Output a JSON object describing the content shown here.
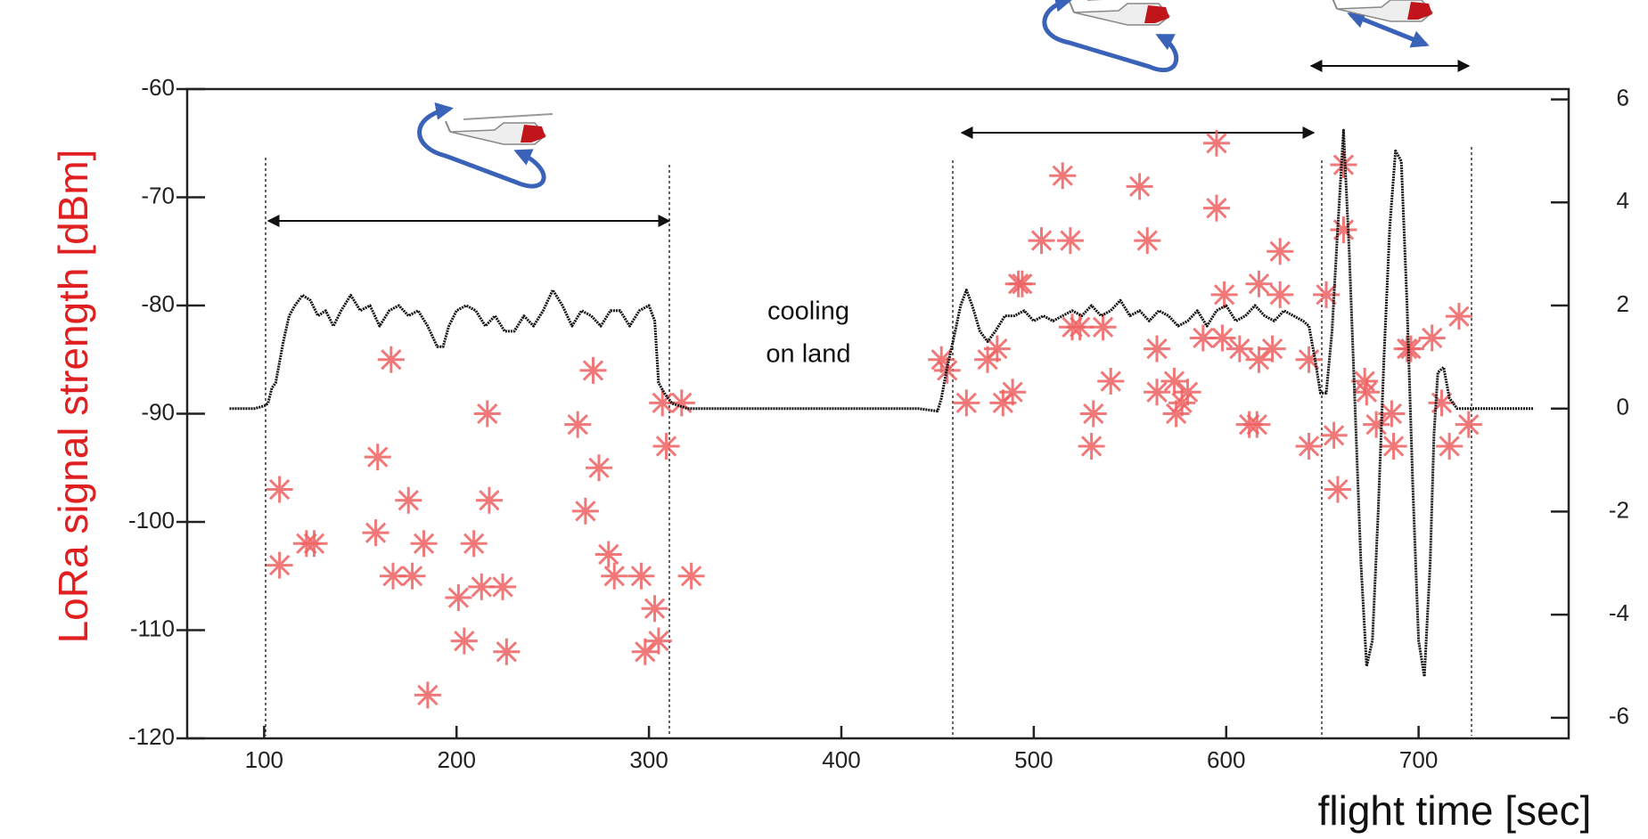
{
  "chart_data": {
    "type": "scatter",
    "xlabel": "flight time [sec]",
    "ylabel": "LoRa signal  strength [dBm]",
    "annotation": [
      "cooling",
      "on land"
    ],
    "xlim": [
      60,
      778
    ],
    "xticks": [
      100,
      200,
      300,
      400,
      500,
      600,
      700
    ],
    "ylim": [
      -120,
      -60
    ],
    "yticks": [
      -120,
      -110,
      -100,
      -90,
      -80,
      -70,
      -60
    ],
    "y2lim": [
      -6.4,
      6.2
    ],
    "y2ticks": [
      -6,
      -4,
      -2,
      0,
      2,
      4,
      6
    ],
    "grid": false,
    "series": [
      {
        "type": "scatter",
        "color": "#ee6060",
        "x": [
          108,
          108,
          122,
          126,
          159,
          166,
          158,
          167,
          175,
          177,
          183,
          185,
          201,
          204,
          209,
          213,
          216,
          217,
          224,
          226,
          263,
          267,
          271,
          274,
          279,
          282,
          296,
          298,
          303,
          305,
          307,
          309,
          317,
          322,
          452,
          455,
          465,
          476,
          481,
          484,
          489,
          492,
          494,
          504,
          515,
          519,
          520,
          524,
          531,
          530,
          536,
          540,
          555,
          559,
          564,
          564,
          573,
          574,
          577,
          580,
          595,
          595,
          588,
          599,
          598,
          607,
          612,
          616,
          617,
          624,
          628,
          628,
          617,
          643,
          643,
          652,
          656,
          661,
          661,
          658,
          672,
          673,
          678,
          686,
          687,
          694,
          696,
          707,
          712,
          716,
          721,
          726
        ],
        "values": [
          -97,
          -104,
          -102,
          -102,
          -94,
          -85,
          -101,
          -105,
          -98,
          -105,
          -102,
          -116,
          -107,
          -111,
          -102,
          -106,
          -90,
          -98,
          -106,
          -112,
          -91,
          -99,
          -86,
          -95,
          -103,
          -105,
          -105,
          -112,
          -108,
          -111,
          -89,
          -93,
          -89,
          -105,
          -85,
          -86,
          -89,
          -85,
          -84,
          -89,
          -88,
          -78,
          -78,
          -74,
          -68,
          -74,
          -82,
          -82,
          -90,
          -93,
          -82,
          -87,
          -69,
          -74,
          -84,
          -88,
          -87,
          -90,
          -89,
          -88,
          -65,
          -71,
          -83,
          -79,
          -83,
          -84,
          -91,
          -91,
          -78,
          -84,
          -79,
          -75,
          -85,
          -85,
          -93,
          -79,
          -92,
          -67,
          -73,
          -97,
          -87,
          -88,
          -91,
          -90,
          -93,
          -84,
          -84,
          -83,
          -89,
          -93,
          -81,
          -91
        ]
      },
      {
        "type": "line",
        "axis": "y2",
        "color": "#111111",
        "x": [
          82,
          95,
          100,
          102,
          104,
          106,
          108,
          110,
          113,
          116,
          120,
          124,
          128,
          132,
          136,
          140,
          145,
          150,
          155,
          160,
          165,
          170,
          175,
          180,
          185,
          190,
          193,
          196,
          200,
          205,
          210,
          215,
          220,
          225,
          230,
          235,
          240,
          245,
          250,
          255,
          260,
          265,
          270,
          275,
          280,
          285,
          290,
          295,
          300,
          303,
          305,
          308,
          312,
          320,
          340,
          360,
          380,
          400,
          420,
          440,
          450,
          452,
          455,
          458,
          462,
          465,
          468,
          472,
          476,
          480,
          485,
          490,
          495,
          500,
          505,
          510,
          515,
          520,
          525,
          530,
          535,
          540,
          545,
          550,
          555,
          560,
          565,
          570,
          575,
          580,
          585,
          590,
          595,
          600,
          605,
          610,
          615,
          620,
          625,
          630,
          635,
          640,
          643,
          646,
          649,
          652,
          655,
          658,
          661,
          664,
          667,
          670,
          673,
          676,
          679,
          682,
          685,
          688,
          691,
          694,
          697,
          700,
          703,
          706,
          708,
          710,
          713,
          716,
          720,
          730,
          760
        ],
        "values": [
          0,
          0,
          0.05,
          0.1,
          0.4,
          0.5,
          0.9,
          1.3,
          1.8,
          2.0,
          2.2,
          2.1,
          1.8,
          1.9,
          1.6,
          1.9,
          2.2,
          1.9,
          2.0,
          1.6,
          1.9,
          2.0,
          1.8,
          1.9,
          1.6,
          1.2,
          1.2,
          1.6,
          1.9,
          2.0,
          1.9,
          1.6,
          1.8,
          1.5,
          1.5,
          1.8,
          1.6,
          1.9,
          2.3,
          2.0,
          1.6,
          1.9,
          1.8,
          1.6,
          1.9,
          1.9,
          1.6,
          1.9,
          2.0,
          1.7,
          0.5,
          0.3,
          0.1,
          0,
          0,
          0,
          0,
          0,
          0,
          0,
          -0.05,
          0.2,
          0.8,
          1.3,
          2.0,
          2.3,
          2.0,
          1.5,
          1.3,
          1.5,
          1.8,
          1.8,
          1.9,
          1.7,
          1.8,
          1.7,
          1.8,
          1.9,
          1.8,
          2.0,
          1.8,
          1.9,
          2.1,
          1.8,
          1.9,
          1.7,
          1.9,
          1.8,
          1.6,
          1.7,
          1.9,
          1.6,
          1.9,
          2.0,
          1.7,
          1.8,
          2.0,
          1.8,
          1.7,
          1.9,
          1.8,
          1.7,
          1.6,
          1.0,
          0.3,
          0.3,
          1.5,
          3.5,
          5.4,
          3.0,
          0,
          -3,
          -5.0,
          -4.5,
          -2,
          1,
          3.5,
          5.0,
          4.8,
          2.0,
          -1.5,
          -4.5,
          -5.2,
          -3,
          -0.5,
          0.7,
          0.8,
          0.2,
          0,
          0,
          0
        ]
      }
    ]
  }
}
